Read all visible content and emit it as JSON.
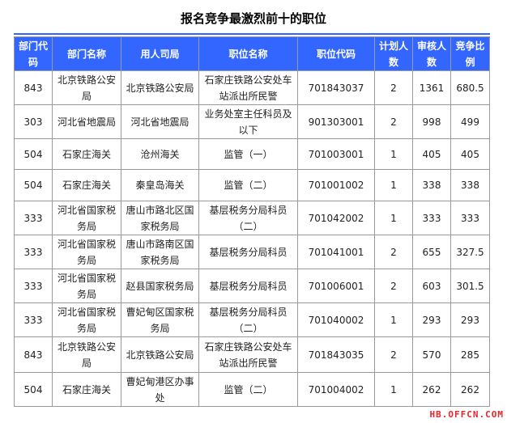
{
  "title": "报名竞争最激烈前十的职位",
  "headers": [
    "部门代码",
    "部门名称",
    "用人司局",
    "职位名称",
    "职位代码",
    "计划人数",
    "审核人数",
    "竞争比例"
  ],
  "rows": [
    [
      "843",
      "北京铁路公安局",
      "北京铁路公安局",
      "石家庄铁路公安处车站派出所民警",
      "701843037",
      "2",
      "1361",
      "680.5"
    ],
    [
      "303",
      "河北省地震局",
      "河北省地震局",
      "业务处室主任科员及以下",
      "901303001",
      "2",
      "998",
      "499"
    ],
    [
      "504",
      "石家庄海关",
      "沧州海关",
      "监管（一）",
      "701003001",
      "1",
      "405",
      "405"
    ],
    [
      "504",
      "石家庄海关",
      "秦皇岛海关",
      "监管（二）",
      "701001002",
      "1",
      "338",
      "338"
    ],
    [
      "333",
      "河北省国家税务局",
      "唐山市路北区国家税务局",
      "基层税务分局科员（二）",
      "701042002",
      "1",
      "333",
      "333"
    ],
    [
      "333",
      "河北省国家税务局",
      "唐山市路南区国家税务局",
      "基层税务分局科员",
      "701041001",
      "2",
      "655",
      "327.5"
    ],
    [
      "333",
      "河北省国家税务局",
      "赵县国家税务局",
      "基层税务分局科员",
      "701006001",
      "2",
      "603",
      "301.5"
    ],
    [
      "333",
      "河北省国家税务局",
      "曹妃甸区国家税务局",
      "基层税务分局科员（二）",
      "701040002",
      "1",
      "293",
      "293"
    ],
    [
      "843",
      "北京铁路公安局",
      "北京铁路公安局",
      "石家庄铁路公安处车站派出所民警",
      "701843035",
      "2",
      "570",
      "285"
    ],
    [
      "504",
      "石家庄海关",
      "曹妃甸港区办事处",
      "监管（二）",
      "701004002",
      "1",
      "262",
      "262"
    ]
  ],
  "watermark": "HB.OFFCN.COM",
  "colors": {
    "header_bg": "#3366ff",
    "watermark": "#e8262b"
  }
}
